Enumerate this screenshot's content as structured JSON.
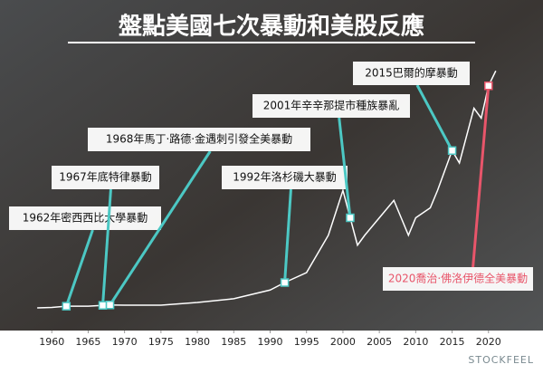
{
  "chart_data": {
    "type": "line",
    "title": "盤點美國七次暴動和美股反應",
    "x": [
      1958,
      1960,
      1962,
      1965,
      1968,
      1970,
      1975,
      1980,
      1985,
      1990,
      1992,
      1995,
      1998,
      2000,
      2001,
      2002,
      2003,
      2005,
      2007,
      2008,
      2009,
      2010,
      2012,
      2013,
      2015,
      2016,
      2018,
      2019,
      2020,
      2021
    ],
    "series": [
      {
        "color": "#ffffff",
        "values": [
          1.8,
          2,
          2.5,
          2.5,
          3,
          2.9,
          2.9,
          4,
          5.5,
          9,
          12,
          16,
          31,
          49,
          38,
          27,
          31,
          38,
          45,
          38,
          31,
          38,
          42,
          49,
          65,
          60,
          82,
          78,
          91,
          97
        ]
      }
    ],
    "xlim": [
      1955,
      2025
    ],
    "xticks": [
      1960,
      1965,
      1970,
      1975,
      1980,
      1985,
      1990,
      1995,
      2000,
      2005,
      2010,
      2015,
      2020
    ],
    "ylim": [
      0,
      100
    ],
    "annotations": [
      {
        "label": "1962年密西西比大學暴動",
        "x": 1962
      },
      {
        "label": "1967年底特律暴動",
        "x": 1967
      },
      {
        "label": "1968年馬丁·路德·金遇刺引發全美暴動",
        "x": 1968
      },
      {
        "label": "1992年洛杉磯大暴動",
        "x": 1992
      },
      {
        "label": "2001年辛辛那提市種族暴亂",
        "x": 2001
      },
      {
        "label": "2015巴爾的摩暴動",
        "x": 2015
      },
      {
        "label": "2020喬治·佛洛伊德全美暴動",
        "x": 2020
      }
    ],
    "brand": "STOCKFEEL"
  }
}
